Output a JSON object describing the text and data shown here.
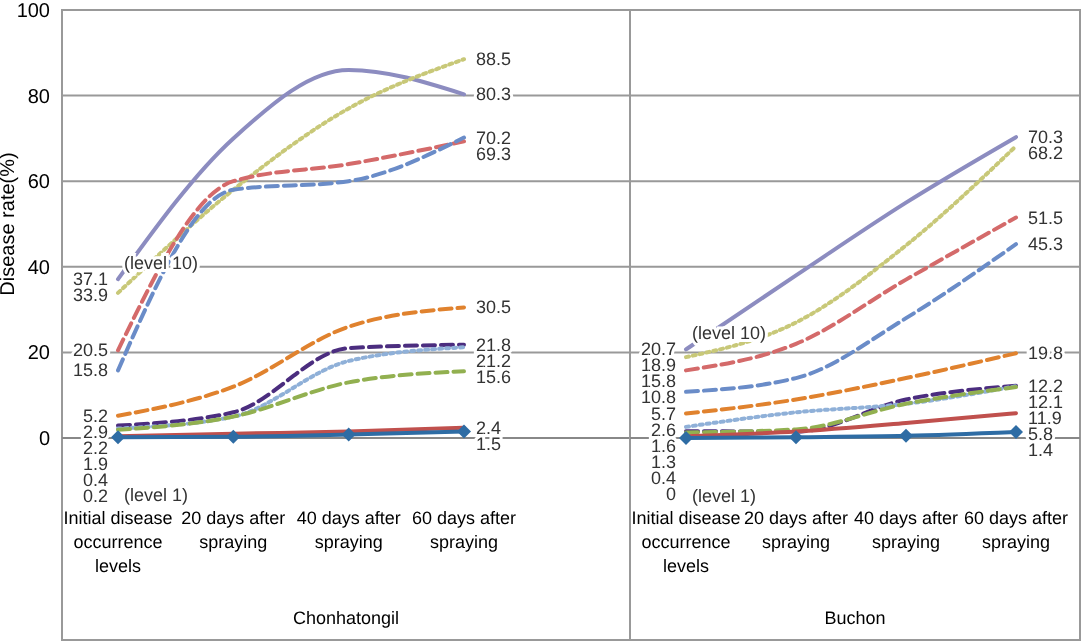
{
  "chart_data": [
    {
      "type": "line",
      "xlabel": "Chonhatongil",
      "ylabel": "Disease rate(%)",
      "categories": [
        "Initial disease occurrence levels",
        "20 days after spraying",
        "40 days after spraying",
        "60 days after spraying"
      ],
      "ylim": [
        0,
        100
      ],
      "yticks": [
        0,
        20,
        40,
        60,
        80,
        100
      ],
      "grid": "y",
      "marker": "none",
      "annotations": [
        {
          "text": "(level 10)",
          "x": "Initial disease occurrence levels",
          "y": 37.1
        },
        {
          "text": "(level 1)",
          "x": "Initial disease occurrence levels",
          "y": 0.2
        }
      ],
      "series": [
        {
          "color": "#8c8cc0",
          "line_style": "solid",
          "values": [
            37.1,
            70,
            86,
            80.3
          ],
          "value_labels": [
            "37.1",
            null,
            null,
            "80.3"
          ]
        },
        {
          "color": "#c8c878",
          "line_style": "dotted",
          "values": [
            33.9,
            58,
            77,
            88.5
          ],
          "value_labels": [
            "33.9",
            null,
            null,
            "88.5"
          ]
        },
        {
          "color": "#d46a6a",
          "line_style": "dashed",
          "values": [
            20.5,
            60,
            64,
            69.3
          ],
          "value_labels": [
            "20.5",
            null,
            null,
            "69.3"
          ]
        },
        {
          "color": "#6a8cc8",
          "line_style": "dashed",
          "values": [
            15.8,
            58,
            60,
            70.2
          ],
          "value_labels": [
            "15.8",
            null,
            null,
            "70.2"
          ]
        },
        {
          "color": "#e0822e",
          "line_style": "dashed",
          "values": [
            5.2,
            12,
            26,
            30.5
          ],
          "value_labels": [
            "5.2",
            null,
            null,
            "30.5"
          ]
        },
        {
          "color": "#4b2d7f",
          "line_style": "dashed",
          "values": [
            2.9,
            6,
            21,
            21.8
          ],
          "value_labels": [
            "2.9",
            null,
            null,
            "21.8"
          ]
        },
        {
          "color": "#8fb0d8",
          "line_style": "dotted",
          "values": [
            2.2,
            5,
            18,
            21.2
          ],
          "value_labels": [
            "2.2",
            null,
            null,
            "21.2"
          ]
        },
        {
          "color": "#92b050",
          "line_style": "dashed",
          "values": [
            1.9,
            5,
            13,
            15.6
          ],
          "value_labels": [
            "1.9",
            null,
            null,
            "15.6"
          ]
        },
        {
          "color": "#c0504d",
          "line_style": "solid",
          "values": [
            0.4,
            1,
            1.5,
            2.4
          ],
          "value_labels": [
            "0.4",
            null,
            null,
            "2.4"
          ]
        },
        {
          "color": "#2e6ca4",
          "line_style": "solid",
          "marker": "diamond",
          "values": [
            0.2,
            0.3,
            0.8,
            1.5
          ],
          "value_labels": [
            "0.2",
            null,
            null,
            "1.5"
          ]
        }
      ]
    },
    {
      "type": "line",
      "xlabel": "Buchon",
      "categories": [
        "Initial disease occurrence levels",
        "20 days after spraying",
        "40 days after spraying",
        "60 days after spraying"
      ],
      "ylim": [
        0,
        100
      ],
      "yticks": [
        0,
        20,
        40,
        60,
        80,
        100
      ],
      "grid": "y",
      "tick_labels": "x",
      "marker": "none",
      "annotations": [
        {
          "text": "(level 10)",
          "x": "Initial disease occurrence levels",
          "y": 20.7
        },
        {
          "text": "(level 1)",
          "x": "Initial disease occurrence levels",
          "y": 0
        }
      ],
      "series": [
        {
          "color": "#8c8cc0",
          "line_style": "solid",
          "values": [
            20.7,
            38,
            55,
            70.3
          ],
          "value_labels": [
            "20.7",
            null,
            null,
            "70.3"
          ]
        },
        {
          "color": "#c8c878",
          "line_style": "dotted",
          "values": [
            18.9,
            27,
            45,
            68.2
          ],
          "value_labels": [
            "18.9",
            null,
            null,
            "68.2"
          ]
        },
        {
          "color": "#d46a6a",
          "line_style": "dashed",
          "values": [
            15.8,
            22,
            37,
            51.5
          ],
          "value_labels": [
            "15.8",
            null,
            null,
            "51.5"
          ]
        },
        {
          "color": "#6a8cc8",
          "line_style": "dashed",
          "values": [
            10.8,
            14,
            28,
            45.3
          ],
          "value_labels": [
            "10.8",
            null,
            null,
            "45.3"
          ]
        },
        {
          "color": "#e0822e",
          "line_style": "dashed",
          "values": [
            5.7,
            9,
            14,
            19.8
          ],
          "value_labels": [
            "5.7",
            null,
            null,
            "19.8"
          ]
        },
        {
          "color": "#4b2d7f",
          "line_style": "dashed",
          "values": [
            1.6,
            1.5,
            9,
            12.2
          ],
          "value_labels": [
            "1.6",
            null,
            null,
            "12.2"
          ]
        },
        {
          "color": "#8fb0d8",
          "line_style": "dotted",
          "values": [
            2.6,
            6,
            8,
            12.1
          ],
          "value_labels": [
            "2.6",
            null,
            null,
            "12.1"
          ]
        },
        {
          "color": "#92b050",
          "line_style": "dashed",
          "values": [
            1.3,
            2,
            8,
            11.9
          ],
          "value_labels": [
            "1.3",
            null,
            null,
            "11.9"
          ]
        },
        {
          "color": "#c0504d",
          "line_style": "solid",
          "values": [
            0.4,
            1.5,
            3.5,
            5.8
          ],
          "value_labels": [
            "0.4",
            null,
            null,
            "5.8"
          ]
        },
        {
          "color": "#2e6ca4",
          "line_style": "solid",
          "marker": "diamond",
          "values": [
            0,
            0.2,
            0.5,
            1.4
          ],
          "value_labels": [
            "0",
            null,
            null,
            "1.4"
          ]
        }
      ]
    }
  ]
}
